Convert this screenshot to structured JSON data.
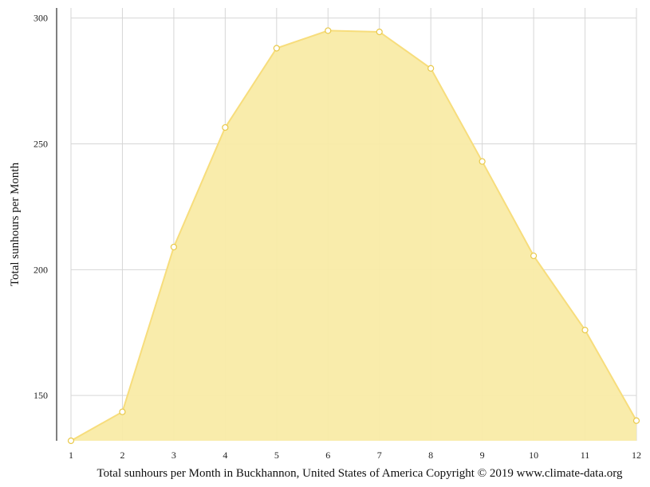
{
  "chart_data": {
    "type": "area",
    "title": "",
    "xlabel": "Total sunhours per Month in Buckhannon, United States of America Copyright © 2019 www.climate-data.org",
    "ylabel": "Total sunhours per Month",
    "x": [
      1,
      2,
      3,
      4,
      5,
      6,
      7,
      8,
      9,
      10,
      11,
      12
    ],
    "x_tick_labels": [
      "1",
      "2",
      "3",
      "4",
      "5",
      "6",
      "7",
      "8",
      "9",
      "10",
      "11",
      "12"
    ],
    "y_ticks": [
      150,
      200,
      250,
      300
    ],
    "y_tick_labels": [
      "150",
      "200",
      "250",
      "300"
    ],
    "series": [
      {
        "values": [
          132,
          143.5,
          209,
          256.5,
          288,
          295,
          294.5,
          280,
          243,
          205.5,
          176,
          140
        ]
      }
    ],
    "xlim": [
      1,
      12
    ],
    "ylim": [
      132,
      304
    ],
    "grid": true,
    "legend": "none",
    "colors": {
      "fill": "#f9eba6",
      "line": "#f7dd7c",
      "marker_fill": "#ffffff",
      "marker_stroke": "#e9c94a",
      "grid": "#d6d6d6",
      "axis": "#555555"
    }
  }
}
